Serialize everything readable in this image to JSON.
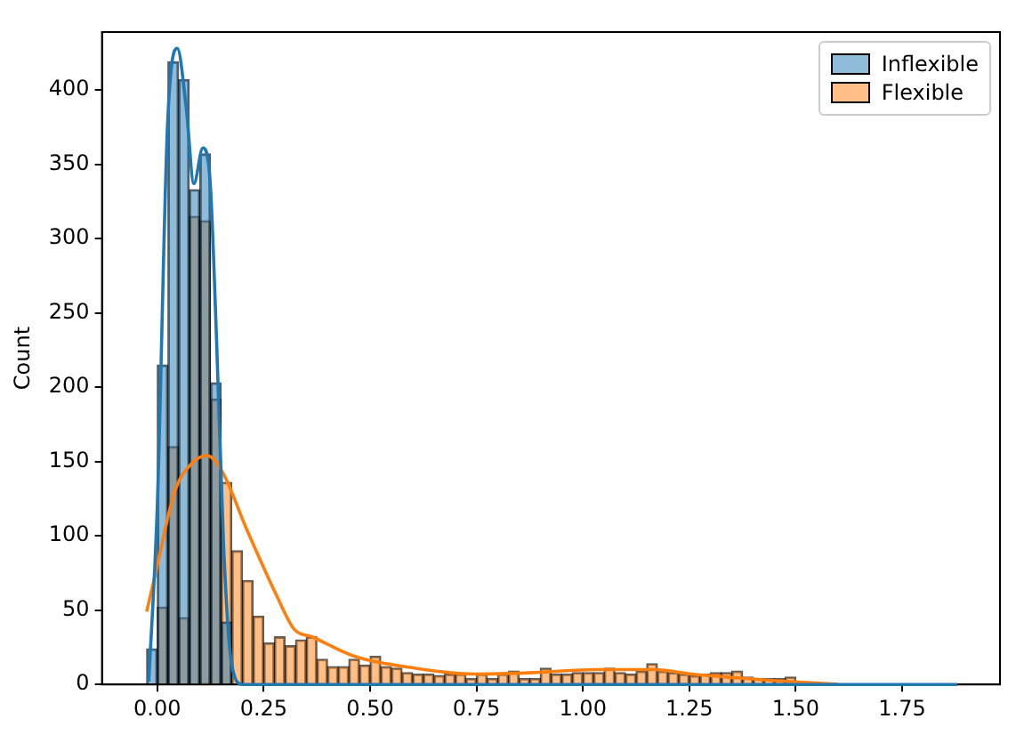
{
  "chart_data": {
    "type": "histogram",
    "ylabel": "Count",
    "bins": [
      -0.025,
      0,
      0.025,
      0.05,
      0.075,
      0.1,
      0.125,
      0.15,
      0.175,
      0.2,
      0.225,
      0.25,
      0.275,
      0.3,
      0.325,
      0.35,
      0.375,
      0.4,
      0.425,
      0.45,
      0.475,
      0.5,
      0.525,
      0.55,
      0.575,
      0.6,
      0.625,
      0.65,
      0.675,
      0.7,
      0.725,
      0.75,
      0.775,
      0.8,
      0.825,
      0.85,
      0.875,
      0.9,
      0.925,
      0.95,
      0.975,
      1.0,
      1.025,
      1.05,
      1.075,
      1.1,
      1.125,
      1.15,
      1.175,
      1.2,
      1.225,
      1.25,
      1.275,
      1.3,
      1.325,
      1.35,
      1.375,
      1.4,
      1.425,
      1.45,
      1.475,
      1.5
    ],
    "series": [
      {
        "name": "Inflexible",
        "color": "#1f77b4",
        "values": [
          24,
          215,
          419,
          407,
          333,
          357,
          203,
          42,
          0,
          0,
          0,
          0,
          0,
          0,
          0,
          0,
          0,
          0,
          0,
          0,
          0,
          0,
          0,
          0,
          0,
          0,
          0,
          0,
          0,
          0,
          0,
          0,
          0,
          0,
          0,
          0,
          0,
          0,
          0,
          0,
          0,
          0,
          0,
          0,
          0,
          0,
          0,
          0,
          0,
          0,
          0,
          0,
          0,
          0,
          0,
          0,
          0,
          0,
          0,
          0,
          0
        ]
      },
      {
        "name": "Flexible",
        "color": "#ff7f0e",
        "values": [
          0,
          52,
          160,
          45,
          315,
          312,
          192,
          136,
          90,
          70,
          46,
          28,
          32,
          26,
          30,
          32,
          17,
          12,
          12,
          17,
          13,
          19,
          12,
          11,
          8,
          7,
          7,
          6,
          7,
          7,
          4,
          7,
          4,
          7,
          9,
          4,
          4,
          11,
          7,
          7,
          8,
          8,
          8,
          11,
          8,
          7,
          9,
          14,
          9,
          8,
          7,
          6,
          7,
          8,
          8,
          9,
          5,
          4,
          4,
          4,
          5
        ]
      },
      {
        "type": "line",
        "color": "#1f77b4",
        "x": [
          -0.02,
          0,
          0.024,
          0.047,
          0.068,
          0.086,
          0.107,
          0.124,
          0.139,
          0.156,
          0.174,
          0.2,
          0.5,
          1.0,
          1.5,
          1.88
        ],
        "values": [
          2,
          120,
          376,
          428,
          388,
          337,
          361,
          339,
          234,
          92,
          15,
          0,
          0,
          0,
          0,
          0
        ]
      },
      {
        "type": "line",
        "color": "#ff7f0e",
        "x": [
          -0.025,
          0,
          0.04,
          0.082,
          0.117,
          0.153,
          0.209,
          0.28,
          0.322,
          0.364,
          0.463,
          0.605,
          0.746,
          0.887,
          1.03,
          1.17,
          1.254,
          1.339,
          1.48,
          1.55,
          1.6
        ],
        "values": [
          49,
          80,
          129,
          149,
          154,
          143,
          105,
          60,
          37,
          32,
          19,
          11,
          7,
          8,
          10,
          10,
          7,
          5,
          2,
          1,
          0
        ]
      }
    ],
    "xlim": [
      -0.13,
      1.98
    ],
    "ylim": [
      0,
      439
    ],
    "xticks": [
      {
        "value": 0,
        "label": "0.00"
      },
      {
        "value": 0.25,
        "label": "0.25"
      },
      {
        "value": 0.5,
        "label": "0.50"
      },
      {
        "value": 0.75,
        "label": "0.75"
      },
      {
        "value": 1,
        "label": "1.00"
      },
      {
        "value": 1.25,
        "label": "1.25"
      },
      {
        "value": 1.5,
        "label": "1.50"
      },
      {
        "value": 1.75,
        "label": "1.75"
      }
    ],
    "yticks": [
      0,
      50,
      100,
      150,
      200,
      250,
      300,
      350,
      400
    ],
    "grid": false,
    "legend": "top right"
  }
}
